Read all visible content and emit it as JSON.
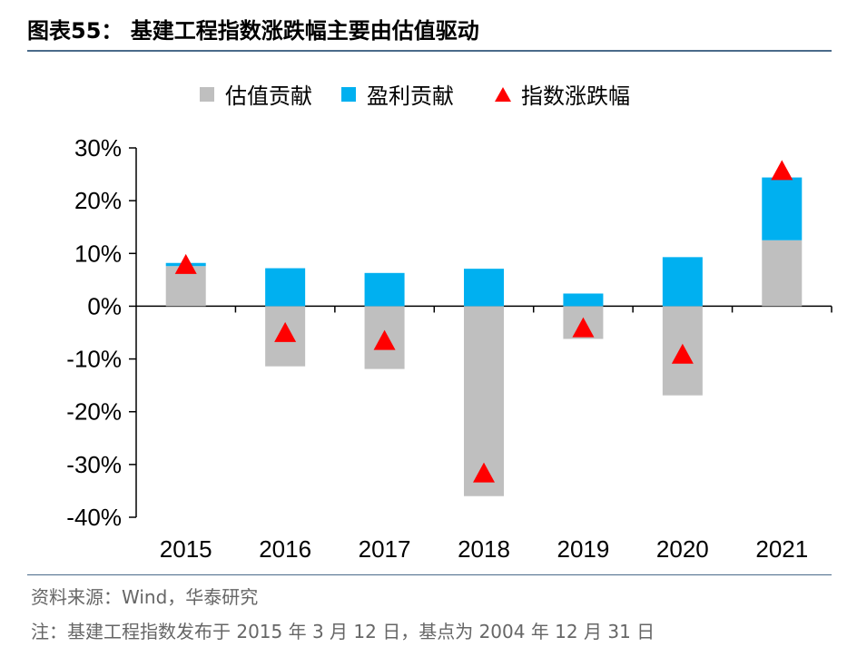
{
  "title": "图表55：  基建工程指数涨跌幅主要由估值驱动",
  "source": "资料来源：Wind，华泰研究",
  "note": "注：基建工程指数发布于 2015 年 3 月 12 日，基点为 2004 年 12 月 31 日",
  "colors": {
    "valuation": "#bfbfbf",
    "earnings": "#00b0f0",
    "index": "#ff0000",
    "rule": "#4a6b8a"
  },
  "chart_data": {
    "type": "bar",
    "stacked": true,
    "categories": [
      "2015",
      "2016",
      "2017",
      "2018",
      "2019",
      "2020",
      "2021"
    ],
    "series": [
      {
        "name": "估值贡献",
        "kind": "bar",
        "values": [
          7.6,
          -11.4,
          -11.9,
          -36.0,
          -6.2,
          -16.9,
          12.5
        ]
      },
      {
        "name": "盈利贡献",
        "kind": "bar",
        "values": [
          0.6,
          7.2,
          6.3,
          7.1,
          2.4,
          9.3,
          11.9
        ]
      },
      {
        "name": "指数涨跌幅",
        "kind": "marker",
        "values": [
          8.0,
          -4.9,
          -6.4,
          -31.5,
          -4.0,
          -9.0,
          25.8
        ]
      }
    ],
    "y_ticks": [
      "30%",
      "20%",
      "10%",
      "0%",
      "-10%",
      "-20%",
      "-30%",
      "-40%"
    ],
    "ylim": [
      -40,
      30
    ],
    "legend_position": "top-center",
    "grid": false
  }
}
